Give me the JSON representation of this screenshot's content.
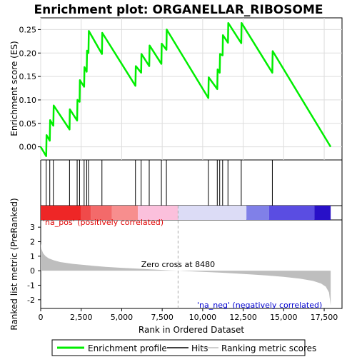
{
  "chart_data": {
    "type": "line",
    "title": "Enrichment plot: ORGANELLAR_RIBOSOME",
    "xlabel": "Rank in Ordered Dataset",
    "ylabel_top": "Enrichment score (ES)",
    "ylabel_bottom": "Ranked list metric (PreRanked)",
    "x_range": [
      0,
      18600
    ],
    "es_ylim": [
      -0.028,
      0.275
    ],
    "metric_ylim": [
      -2.6,
      3.5
    ],
    "x_ticks": [
      "0",
      "2,500",
      "5,000",
      "7,500",
      "10,000",
      "12,500",
      "15,000",
      "17,500"
    ],
    "x_tick_values": [
      0,
      2500,
      5000,
      7500,
      10000,
      12500,
      15000,
      17500
    ],
    "es_ticks": [
      "0.00",
      "0.05",
      "0.10",
      "0.15",
      "0.20",
      "0.25"
    ],
    "es_tick_values": [
      0.0,
      0.05,
      0.1,
      0.15,
      0.2,
      0.25
    ],
    "metric_ticks": [
      "3",
      "2",
      "1",
      "0",
      "-1",
      "-2"
    ],
    "metric_tick_values": [
      3,
      2,
      1,
      0,
      -1,
      -2
    ],
    "colors": {
      "es_line": "#00ee00",
      "hits": "#000000",
      "metric": "#bebebe",
      "pos_label": "#e00000",
      "neg_label": "#0000d0",
      "zero_cross": "#aaaaaa"
    },
    "series": [
      {
        "name": "Enrichment profile",
        "points": [
          [
            0,
            0.0
          ],
          [
            340,
            -0.02
          ],
          [
            360,
            0.025
          ],
          [
            560,
            0.013
          ],
          [
            580,
            0.057
          ],
          [
            780,
            0.045
          ],
          [
            800,
            0.088
          ],
          [
            1780,
            0.037
          ],
          [
            1800,
            0.08
          ],
          [
            2250,
            0.056
          ],
          [
            2270,
            0.1
          ],
          [
            2400,
            0.096
          ],
          [
            2420,
            0.142
          ],
          [
            2680,
            0.128
          ],
          [
            2700,
            0.17
          ],
          [
            2840,
            0.16
          ],
          [
            2860,
            0.205
          ],
          [
            2950,
            0.2
          ],
          [
            2970,
            0.247
          ],
          [
            3780,
            0.198
          ],
          [
            3800,
            0.243
          ],
          [
            5850,
            0.13
          ],
          [
            5870,
            0.172
          ],
          [
            6200,
            0.158
          ],
          [
            6220,
            0.198
          ],
          [
            6700,
            0.172
          ],
          [
            6720,
            0.216
          ],
          [
            7450,
            0.177
          ],
          [
            7470,
            0.22
          ],
          [
            7760,
            0.207
          ],
          [
            7780,
            0.25
          ],
          [
            10350,
            0.104
          ],
          [
            10370,
            0.148
          ],
          [
            10900,
            0.123
          ],
          [
            10920,
            0.165
          ],
          [
            11050,
            0.158
          ],
          [
            11070,
            0.198
          ],
          [
            11230,
            0.195
          ],
          [
            11250,
            0.238
          ],
          [
            11560,
            0.222
          ],
          [
            11580,
            0.264
          ],
          [
            12380,
            0.221
          ],
          [
            12400,
            0.264
          ],
          [
            14300,
            0.158
          ],
          [
            14320,
            0.204
          ],
          [
            17900,
            0.0
          ]
        ]
      }
    ],
    "hits": [
      340,
      560,
      780,
      1780,
      2250,
      2400,
      2680,
      2840,
      2950,
      3780,
      5850,
      6200,
      6700,
      7450,
      7760,
      10350,
      10900,
      11050,
      11230,
      11560,
      12380,
      14300
    ],
    "metric_curve": [
      [
        0,
        1.9
      ],
      [
        50,
        1.5
      ],
      [
        150,
        1.2
      ],
      [
        300,
        1.0
      ],
      [
        500,
        0.85
      ],
      [
        800,
        0.72
      ],
      [
        1200,
        0.6
      ],
      [
        2000,
        0.47
      ],
      [
        3000,
        0.36
      ],
      [
        4000,
        0.27
      ],
      [
        5000,
        0.2
      ],
      [
        6000,
        0.14
      ],
      [
        7000,
        0.08
      ],
      [
        8000,
        0.02
      ],
      [
        8480,
        0.0
      ],
      [
        9000,
        -0.03
      ],
      [
        10000,
        -0.08
      ],
      [
        11000,
        -0.13
      ],
      [
        12000,
        -0.19
      ],
      [
        13000,
        -0.26
      ],
      [
        14000,
        -0.33
      ],
      [
        15000,
        -0.42
      ],
      [
        16000,
        -0.55
      ],
      [
        16800,
        -0.7
      ],
      [
        17300,
        -0.88
      ],
      [
        17600,
        -1.1
      ],
      [
        17800,
        -1.5
      ],
      [
        17900,
        -2.4
      ]
    ],
    "pos_label": "'na_pos' (positively correlated)",
    "neg_label": "'na_neg' (negatively correlated)",
    "zero_cross_label": "Zero cross at 8480",
    "zero_cross": 8480,
    "heat_bands": [
      {
        "from": 0,
        "to": 2500,
        "color": "#ee2626"
      },
      {
        "from": 2500,
        "to": 3100,
        "color": "#f04a4a"
      },
      {
        "from": 3100,
        "to": 4400,
        "color": "#f36a6a"
      },
      {
        "from": 4400,
        "to": 6000,
        "color": "#f78e8e"
      },
      {
        "from": 6000,
        "to": 8480,
        "color": "#fbc0dc"
      },
      {
        "from": 8480,
        "to": 12700,
        "color": "#dcdcf6"
      },
      {
        "from": 12700,
        "to": 14100,
        "color": "#8080e8"
      },
      {
        "from": 14100,
        "to": 16900,
        "color": "#5a4de2"
      },
      {
        "from": 16900,
        "to": 17900,
        "color": "#2810c8"
      }
    ],
    "legend": [
      "Enrichment profile",
      "Hits",
      "Ranking metric scores"
    ],
    "legend_position": "bottom"
  }
}
